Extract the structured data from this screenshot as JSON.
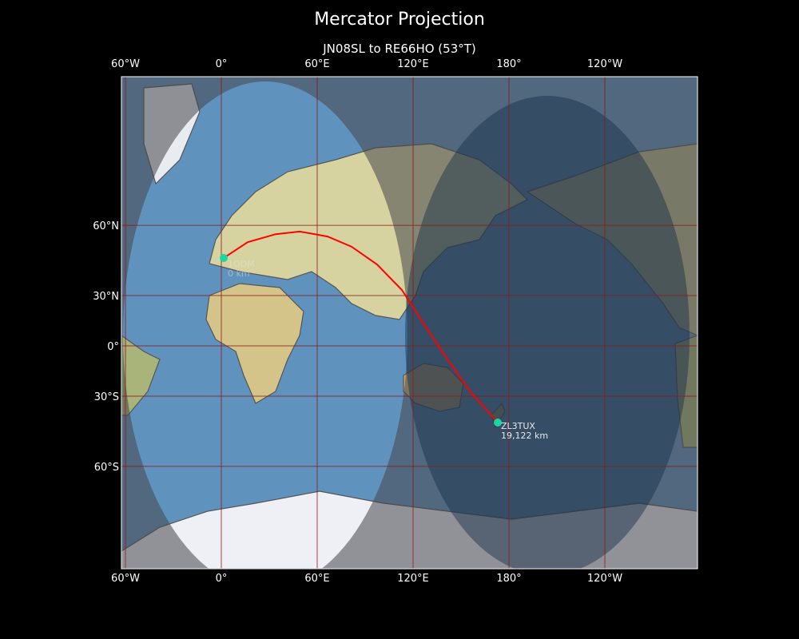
{
  "title": "Mercator Projection",
  "subtitle": "JN08SL to RE66HO (53°T)",
  "map": {
    "projection": "Mercator",
    "lon_range": [
      -62.5,
      297.5
    ],
    "lat_range": [
      -79,
      84
    ],
    "lon_ticks": [
      {
        "lon": -60,
        "label": "60°W"
      },
      {
        "lon": 0,
        "label": "0°"
      },
      {
        "lon": 60,
        "label": "60°E"
      },
      {
        "lon": 120,
        "label": "120°E"
      },
      {
        "lon": 180,
        "label": "180°"
      },
      {
        "lon": 240,
        "label": "120°W"
      }
    ],
    "lat_ticks": [
      {
        "lat": 60,
        "label": "60°N"
      },
      {
        "lat": 30,
        "label": "30°N"
      },
      {
        "lat": 0,
        "label": "0°"
      },
      {
        "lat": -30,
        "label": "30°S"
      },
      {
        "lat": -60,
        "label": "60°S"
      }
    ],
    "colors": {
      "path": "#ff0000",
      "endpoint": "#1ad6a0",
      "grid": "#8b1a1a",
      "ocean": "#5f93bd"
    },
    "start": {
      "lon": 1.5,
      "lat": 48.1,
      "label": "1ODM",
      "distance": "0 km"
    },
    "end": {
      "lon": 173,
      "lat": -43.2,
      "label": "ZL3TUX",
      "distance": "19,122 km"
    },
    "path": [
      [
        1.5,
        48.1
      ],
      [
        16.5,
        54.3
      ],
      [
        34,
        57.1
      ],
      [
        49,
        58.0
      ],
      [
        66.5,
        56.3
      ],
      [
        81.5,
        52.6
      ],
      [
        97.5,
        45.3
      ],
      [
        113,
        33.0
      ],
      [
        126.5,
        13.9
      ],
      [
        141.5,
        -8.5
      ],
      [
        156.5,
        -28.3
      ],
      [
        173,
        -43.2
      ]
    ]
  }
}
